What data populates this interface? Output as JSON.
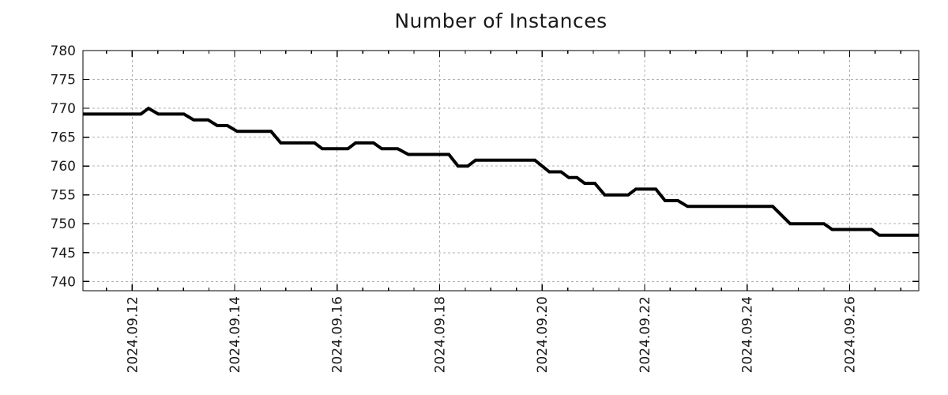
{
  "chart_data": {
    "type": "line",
    "title": "Number of Instances",
    "xlabel": "",
    "ylabel": "",
    "legend": "none",
    "grid": true,
    "grid_color": "#b0b0b0",
    "axis_color": "#000000",
    "text_color": "#1a1a1a",
    "x_unit": "days relative to 2024.09.12 00:00",
    "xlim": [
      -0.96,
      15.35
    ],
    "ylim": [
      738.4,
      780
    ],
    "y_ticks": [
      740,
      745,
      750,
      755,
      760,
      765,
      770,
      775,
      780
    ],
    "x_major_ticks": [
      {
        "day": 0,
        "label": "2024.09.12"
      },
      {
        "day": 2,
        "label": "2024.09.14"
      },
      {
        "day": 4,
        "label": "2024.09.16"
      },
      {
        "day": 6,
        "label": "2024.09.18"
      },
      {
        "day": 8,
        "label": "2024.09.20"
      },
      {
        "day": 10,
        "label": "2024.09.22"
      },
      {
        "day": 12,
        "label": "2024.09.24"
      },
      {
        "day": 14,
        "label": "2024.09.26"
      }
    ],
    "x_minor_tick_interval_days": 0.5,
    "series": [
      {
        "name": "Number of Instances",
        "color": "#000000",
        "line_width": 4,
        "points": [
          [
            -0.96,
            769
          ],
          [
            0.17,
            769
          ],
          [
            0.32,
            770
          ],
          [
            0.51,
            769
          ],
          [
            1.01,
            769
          ],
          [
            1.2,
            768
          ],
          [
            1.48,
            768
          ],
          [
            1.66,
            767
          ],
          [
            1.86,
            767
          ],
          [
            2.05,
            766
          ],
          [
            2.71,
            766
          ],
          [
            2.9,
            764
          ],
          [
            3.56,
            764
          ],
          [
            3.71,
            763
          ],
          [
            4.21,
            763
          ],
          [
            4.36,
            764
          ],
          [
            4.71,
            764
          ],
          [
            4.87,
            763
          ],
          [
            5.18,
            763
          ],
          [
            5.39,
            762
          ],
          [
            6.18,
            762
          ],
          [
            6.36,
            760
          ],
          [
            6.55,
            760
          ],
          [
            6.7,
            761
          ],
          [
            7.86,
            761
          ],
          [
            8.14,
            759
          ],
          [
            8.37,
            759
          ],
          [
            8.52,
            758
          ],
          [
            8.68,
            758
          ],
          [
            8.83,
            757
          ],
          [
            9.03,
            757
          ],
          [
            9.22,
            755
          ],
          [
            9.68,
            755
          ],
          [
            9.83,
            756
          ],
          [
            10.22,
            756
          ],
          [
            10.4,
            754
          ],
          [
            10.65,
            754
          ],
          [
            10.84,
            753
          ],
          [
            12.5,
            753
          ],
          [
            12.84,
            750
          ],
          [
            13.5,
            750
          ],
          [
            13.66,
            749
          ],
          [
            14.43,
            749
          ],
          [
            14.58,
            748
          ],
          [
            15.35,
            748
          ]
        ]
      }
    ]
  }
}
